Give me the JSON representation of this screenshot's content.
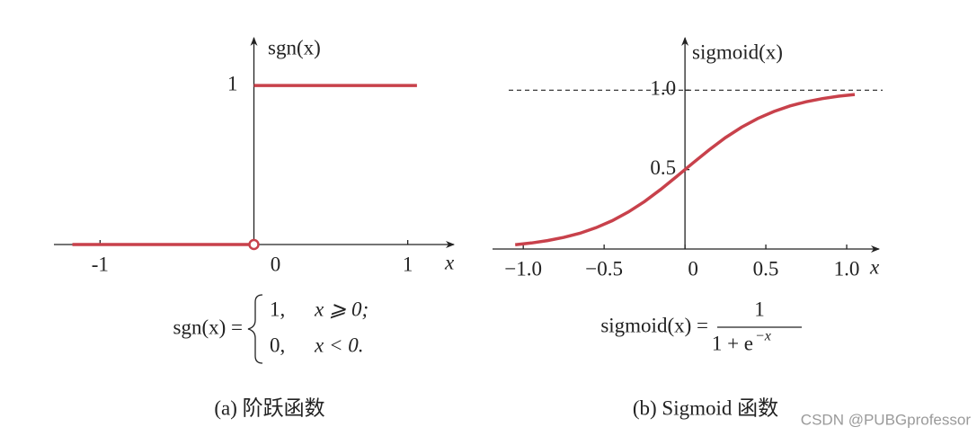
{
  "chart_data": [
    {
      "type": "line",
      "y_label": "sgn(x)",
      "x_label": "x",
      "xlim": [
        -1.3,
        1.3
      ],
      "ylim": [
        0,
        1.3
      ],
      "xticks": [
        -1,
        0,
        1
      ],
      "yticks": [
        1
      ],
      "series": [
        {
          "color": "#c8414b",
          "x": [
            -1.18,
            0,
            0,
            0,
            1.06
          ],
          "values": [
            0,
            0,
            null,
            1,
            1
          ]
        }
      ],
      "open_marker": {
        "x": 0,
        "y": 0,
        "color": "#c8414b"
      },
      "formula": {
        "lhs": "sgn(x) =",
        "cases": [
          {
            "value": "1,",
            "condition": "x ⩾ 0;"
          },
          {
            "value": "0,",
            "condition": "x < 0."
          }
        ]
      },
      "caption": "(a) 阶跃函数"
    },
    {
      "type": "line",
      "y_label": "sigmoid(x)",
      "x_label": "x",
      "xlim": [
        -1.19,
        1.2
      ],
      "ylim": [
        0,
        1.33
      ],
      "xticks": [
        {
          "value": -1.0,
          "label": "−1.0"
        },
        {
          "value": -0.5,
          "label": "−0.5"
        },
        0,
        0.5,
        {
          "value": 1.0,
          "label": "1.0"
        }
      ],
      "yticks": [
        0.5,
        {
          "value": 1.0,
          "label": "1.0"
        }
      ],
      "asymptote": 1,
      "series": [
        {
          "color": "#c8414b",
          "x": [
            -1.05,
            -0.95,
            -0.85,
            -0.75,
            -0.65,
            -0.55,
            -0.45,
            -0.35,
            -0.25,
            -0.15,
            -0.05,
            0.05,
            0.15,
            0.25,
            0.35,
            0.45,
            0.55,
            0.65,
            0.75,
            0.85,
            0.95,
            1.05
          ],
          "values": [
            0.027,
            0.038,
            0.053,
            0.073,
            0.099,
            0.134,
            0.178,
            0.233,
            0.299,
            0.375,
            0.458,
            0.542,
            0.625,
            0.701,
            0.767,
            0.822,
            0.866,
            0.901,
            0.927,
            0.947,
            0.962,
            0.973
          ]
        }
      ],
      "formula": {
        "lhs": "sigmoid(x) =",
        "numerator": "1",
        "denominator": "1 + e",
        "exponent": "−x"
      },
      "caption": "(b) Sigmoid 函数"
    }
  ],
  "watermark": "CSDN @PUBGprofessor"
}
